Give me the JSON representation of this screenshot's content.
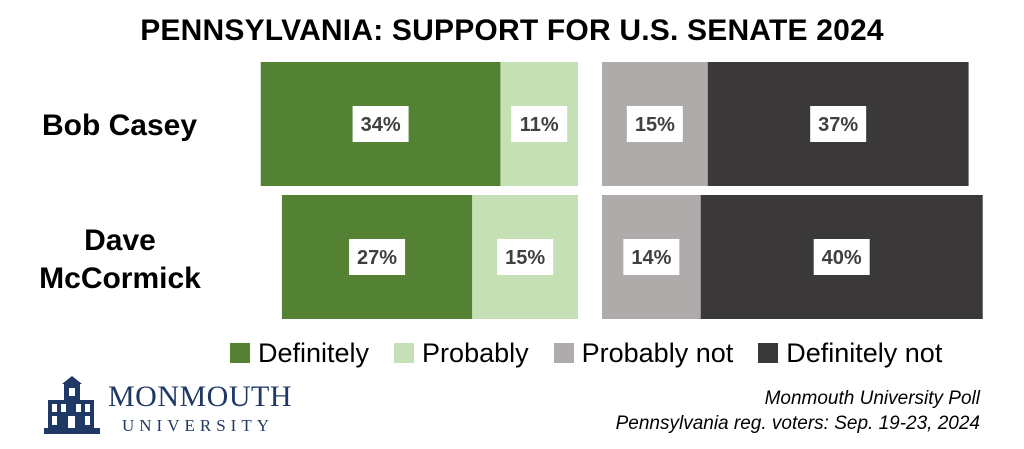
{
  "chart_data": {
    "type": "bar",
    "orientation": "horizontal-stacked-diverging",
    "title": "PENNSYLVANIA: SUPPORT FOR U.S. SENATE 2024",
    "categories": [
      "Bob Casey",
      "Dave McCormick"
    ],
    "series": [
      {
        "name": "Definitely",
        "values": [
          34,
          27
        ],
        "color": "#548235"
      },
      {
        "name": "Probably",
        "values": [
          11,
          15
        ],
        "color": "#c5e0b4"
      },
      {
        "name": "Probably not",
        "values": [
          15,
          14
        ],
        "color": "#afabab"
      },
      {
        "name": "Definitely not",
        "values": [
          37,
          40
        ],
        "color": "#3a3838"
      }
    ],
    "value_suffix": "%",
    "legend_position": "bottom",
    "grid": false
  },
  "source": {
    "line1": "Monmouth University Poll",
    "line2": "Pennsylvania reg. voters: Sep. 19-23, 2024"
  },
  "logo": {
    "name": "MONMOUTH",
    "sub": "UNIVERSITY",
    "color": "#1f3864"
  }
}
